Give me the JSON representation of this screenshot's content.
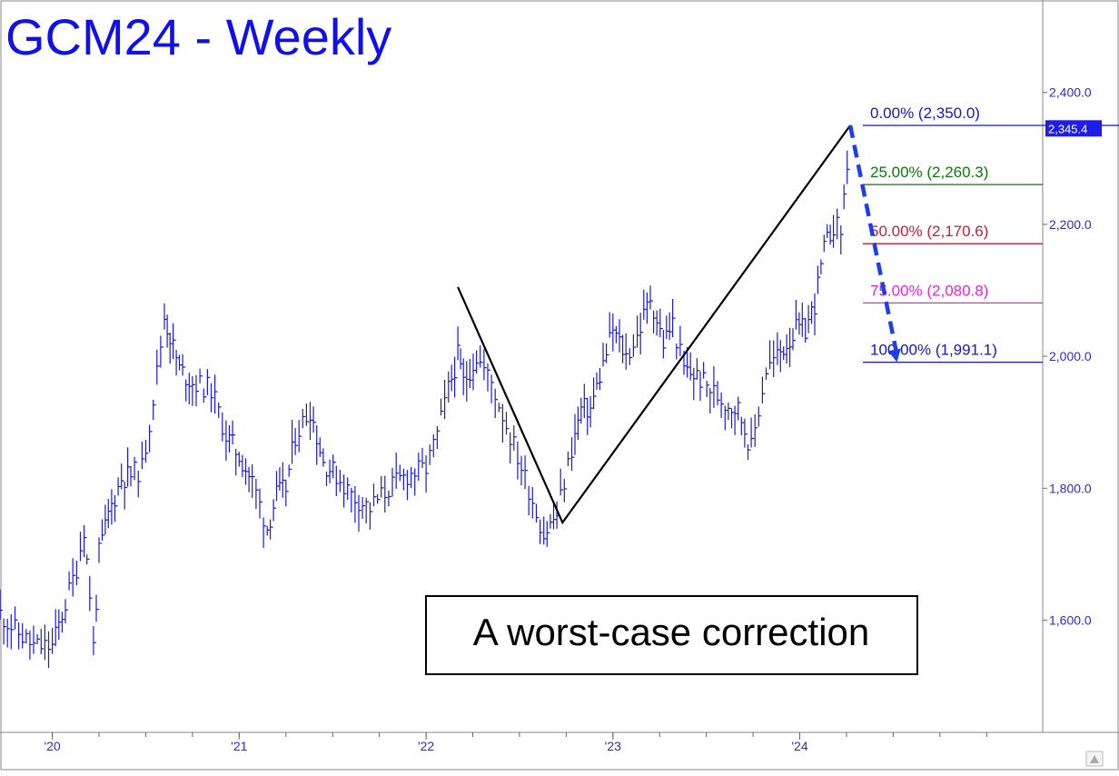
{
  "chart_data": {
    "type": "line",
    "title": "GCM24 - Weekly",
    "y_axis": {
      "ticks": [
        1600,
        1800,
        2000,
        2200,
        2400
      ],
      "tick_labels": [
        "1,600.0",
        "1,800.0",
        "2,000.0",
        "2,200.0",
        "2,400.0"
      ],
      "ylim": [
        1430,
        2540
      ]
    },
    "x_axis": {
      "ticks": [
        2020,
        2021,
        2022,
        2023,
        2024
      ],
      "tick_labels": [
        "'20",
        "'21",
        "'22",
        "'23",
        "'24"
      ],
      "xlim": [
        2019.72,
        2025.3
      ]
    },
    "last_price": {
      "value": 2345.4,
      "label": "2,345.4",
      "color": "#1e1ee8"
    },
    "fib_levels": [
      {
        "label": "0.00% (2,350.0)",
        "value": 2350.0,
        "color": "#1414d8"
      },
      {
        "label": "25.00% (2,260.3)",
        "value": 2260.3,
        "color": "#0a7a0a"
      },
      {
        "label": "50.00% (2,170.6)",
        "value": 2170.6,
        "color": "#c0203a"
      },
      {
        "label": "75.00% (2,080.8)",
        "value": 2080.8,
        "color": "#ee22dd"
      },
      {
        "label": "100.00% (1,991.1)",
        "value": 1991.1,
        "color": "#1414d8"
      }
    ],
    "swing_lines": [
      {
        "x": 2022.17,
        "y": 2105
      },
      {
        "x": 2022.73,
        "y": 1748
      },
      {
        "x": 2024.27,
        "y": 2350
      }
    ],
    "projection_arrow": {
      "from": {
        "x": 2024.27,
        "y": 2350
      },
      "to": {
        "x": 2024.52,
        "y": 1991
      },
      "color": "#1e3cf0"
    },
    "annotation": "A worst-case correction",
    "series": [
      {
        "color": "#1a1ad8",
        "x": [
          2019.72,
          2019.8,
          2019.9,
          2020.0,
          2020.07,
          2020.13,
          2020.17,
          2020.2,
          2020.22,
          2020.25,
          2020.3,
          2020.37,
          2020.42,
          2020.48,
          2020.52,
          2020.56,
          2020.6,
          2020.63,
          2020.68,
          2020.75,
          2020.85,
          2020.93,
          2021.0,
          2021.07,
          2021.15,
          2021.2,
          2021.25,
          2021.3,
          2021.38,
          2021.45,
          2021.52,
          2021.6,
          2021.7,
          2021.8,
          2021.9,
          2022.0,
          2022.06,
          2022.12,
          2022.17,
          2022.2,
          2022.27,
          2022.35,
          2022.45,
          2022.55,
          2022.63,
          2022.7,
          2022.78,
          2022.83,
          2022.88,
          2022.93,
          2023.0,
          2023.07,
          2023.13,
          2023.2,
          2023.27,
          2023.32,
          2023.38,
          2023.45,
          2023.52,
          2023.6,
          2023.67,
          2023.74,
          2023.78,
          2023.82,
          2023.88,
          2023.93,
          2023.98,
          2024.03,
          2024.08,
          2024.13,
          2024.18,
          2024.22,
          2024.27
        ],
        "y": [
          1610,
          1585,
          1560,
          1560,
          1625,
          1680,
          1740,
          1640,
          1560,
          1700,
          1760,
          1815,
          1820,
          1830,
          1900,
          1975,
          2060,
          2030,
          1980,
          1960,
          1950,
          1880,
          1850,
          1810,
          1740,
          1790,
          1800,
          1880,
          1920,
          1840,
          1820,
          1790,
          1770,
          1800,
          1820,
          1830,
          1880,
          1950,
          2000,
          1960,
          2000,
          1960,
          1880,
          1800,
          1730,
          1760,
          1860,
          1920,
          1920,
          1970,
          2040,
          2000,
          2030,
          2090,
          2020,
          2050,
          1980,
          1970,
          1950,
          1930,
          1920,
          1860,
          1920,
          1980,
          2000,
          2020,
          2040,
          2040,
          2080,
          2160,
          2200,
          2190,
          2345
        ]
      }
    ]
  }
}
